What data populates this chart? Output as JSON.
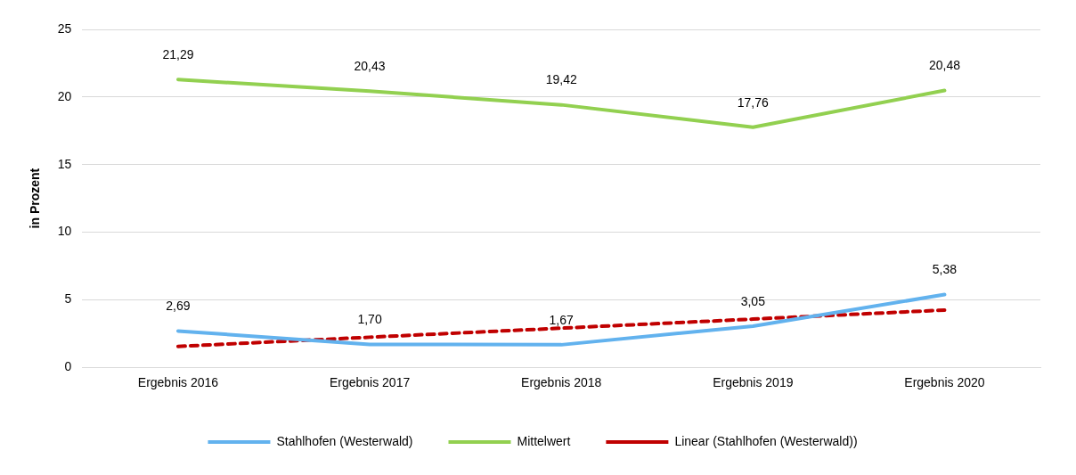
{
  "chart_data": {
    "type": "line",
    "ylabel": "in Prozent",
    "categories": [
      "Ergebnis 2016",
      "Ergebnis 2017",
      "Ergebnis 2018",
      "Ergebnis 2019",
      "Ergebnis 2020"
    ],
    "series": [
      {
        "name": "Stahlhofen (Westerwald)",
        "color": "#62b2ee",
        "values": [
          2.69,
          1.7,
          1.67,
          3.05,
          5.38
        ],
        "value_labels": [
          "2,69",
          "1,70",
          "1,67",
          "3,05",
          "5,38"
        ]
      },
      {
        "name": "Mittelwert",
        "color": "#92d050",
        "values": [
          21.29,
          20.43,
          19.42,
          17.76,
          20.48
        ],
        "value_labels": [
          "21,29",
          "20,43",
          "19,42",
          "17,76",
          "20,48"
        ]
      },
      {
        "name": "Linear (Stahlhofen (Westerwald))",
        "color": "#c00000",
        "values": [
          1.55,
          2.23,
          2.9,
          3.57,
          4.24
        ],
        "line_style": "dashed"
      }
    ],
    "ylim": [
      0,
      25
    ],
    "yticks": [
      0,
      5,
      10,
      15,
      20,
      25
    ],
    "grid": "y",
    "legend": "bottom",
    "marker": "none"
  }
}
